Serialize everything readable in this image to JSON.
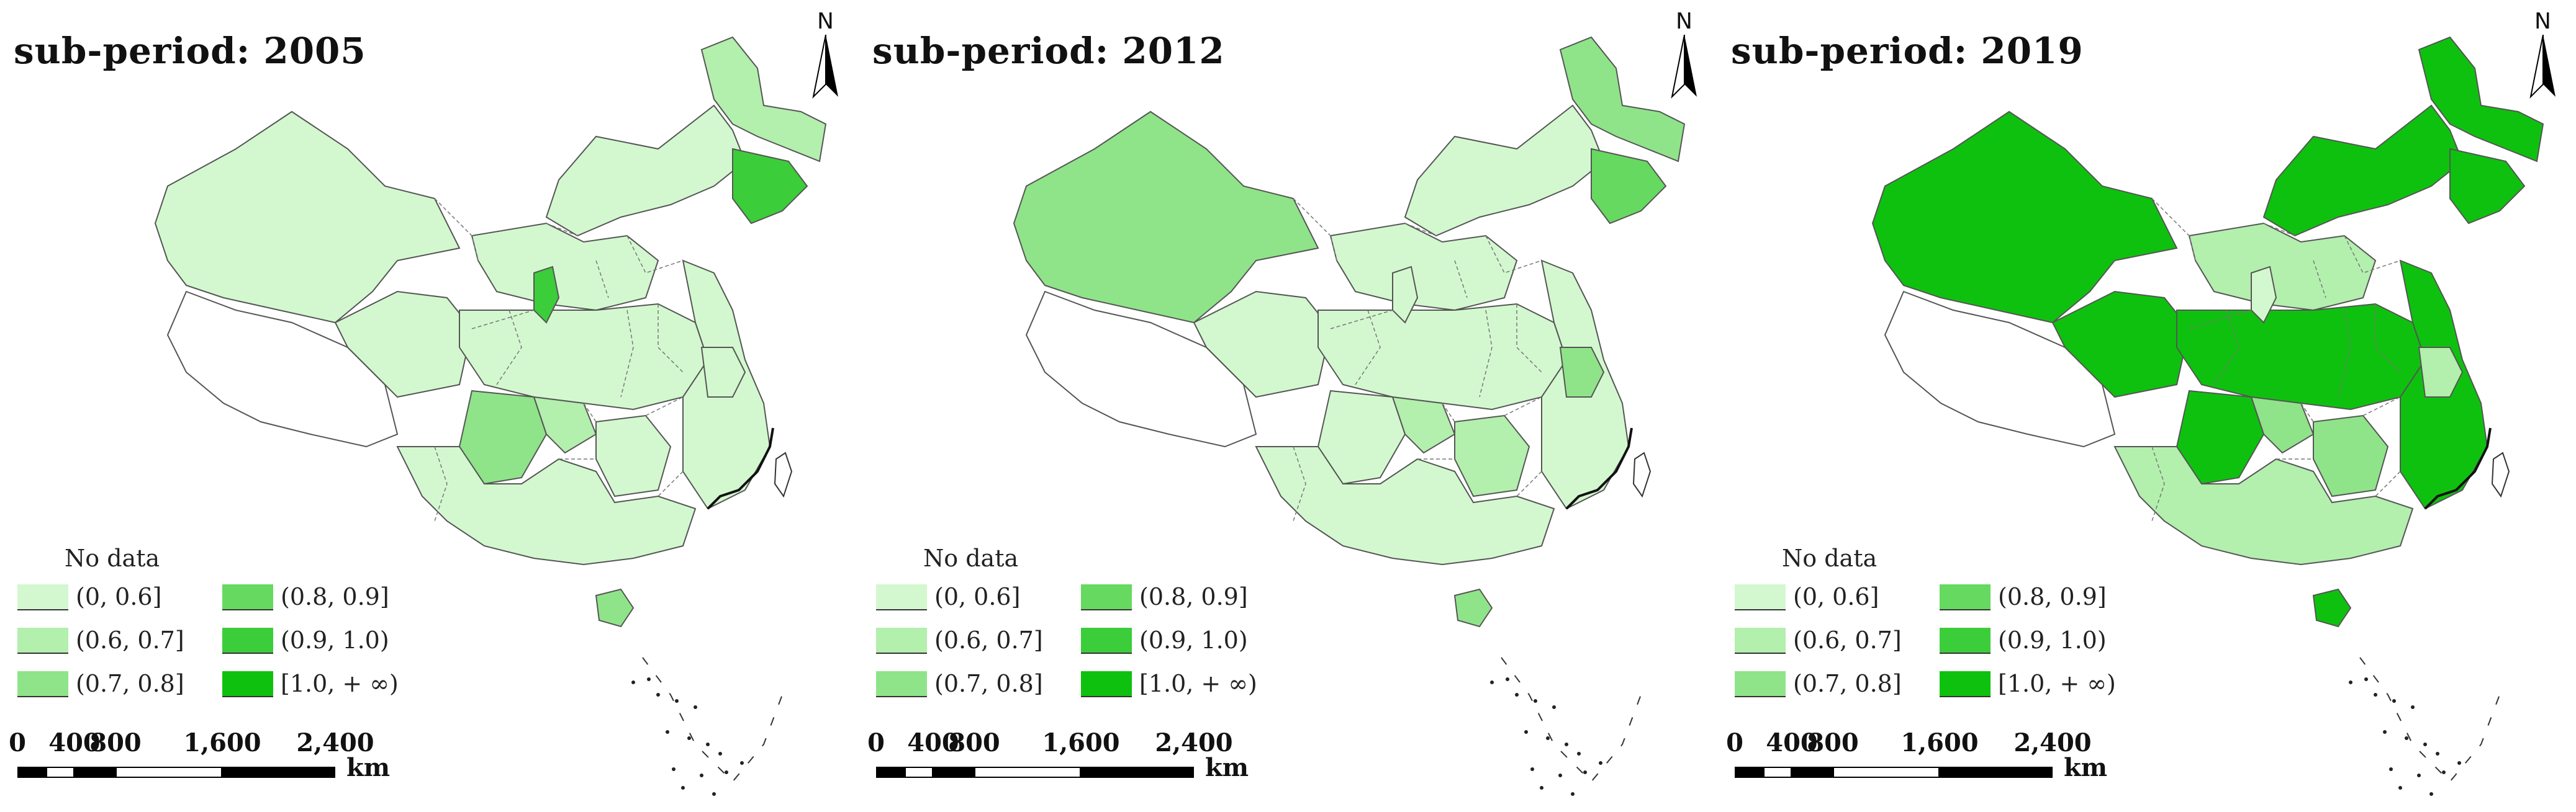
{
  "colors": {
    "no_data": "#ffffff",
    "c1": "#d3f8cf",
    "c2": "#b3efad",
    "c3": "#8fe489",
    "c4": "#66d960",
    "c5": "#3ccd3a",
    "c6": "#0fc10f",
    "border": "#555555"
  },
  "legend": {
    "no_data": "No data",
    "items": [
      {
        "key": "c1",
        "label": "(0, 0.6]"
      },
      {
        "key": "c2",
        "label": "(0.6, 0.7]"
      },
      {
        "key": "c3",
        "label": "(0.7, 0.8]"
      },
      {
        "key": "c4",
        "label": "(0.8, 0.9]"
      },
      {
        "key": "c5",
        "label": "(0.9, 1.0)"
      },
      {
        "key": "c6",
        "label": "[1.0, + ∞)"
      }
    ]
  },
  "scalebar": {
    "ticks": [
      "0",
      "400",
      "800",
      "1,600",
      "2,400"
    ],
    "unit": "km"
  },
  "north_label": "N",
  "panels": [
    {
      "title": "sub-period: 2005",
      "regions": {
        "northwest": "c1",
        "northeast_inner": "c1",
        "northeast_upper": "c2",
        "northeast_lower": "c5",
        "north_central": "c1",
        "ningxia": "c5",
        "central": "c1",
        "east_coast": "c1",
        "south": "c1",
        "sichuan": "c3",
        "chongqing": "c2",
        "hainan": "c3",
        "jiangsu": "c1",
        "hunan": "c1"
      }
    },
    {
      "title": "sub-period: 2012",
      "regions": {
        "northwest": "c3",
        "northeast_inner": "c1",
        "northeast_upper": "c3",
        "northeast_lower": "c4",
        "north_central": "c1",
        "ningxia": "c1",
        "central": "c1",
        "east_coast": "c1",
        "south": "c1",
        "sichuan": "c1",
        "chongqing": "c2",
        "hainan": "c3",
        "jiangsu": "c3",
        "hunan": "c2"
      }
    },
    {
      "title": "sub-period: 2019",
      "regions": {
        "northwest": "c6",
        "northeast_inner": "c6",
        "northeast_upper": "c6",
        "northeast_lower": "c6",
        "north_central": "c2",
        "ningxia": "c1",
        "central": "c6",
        "east_coast": "c6",
        "south": "c2",
        "sichuan": "c6",
        "chongqing": "c3",
        "hainan": "c6",
        "jiangsu": "c2",
        "hunan": "c3"
      }
    }
  ]
}
